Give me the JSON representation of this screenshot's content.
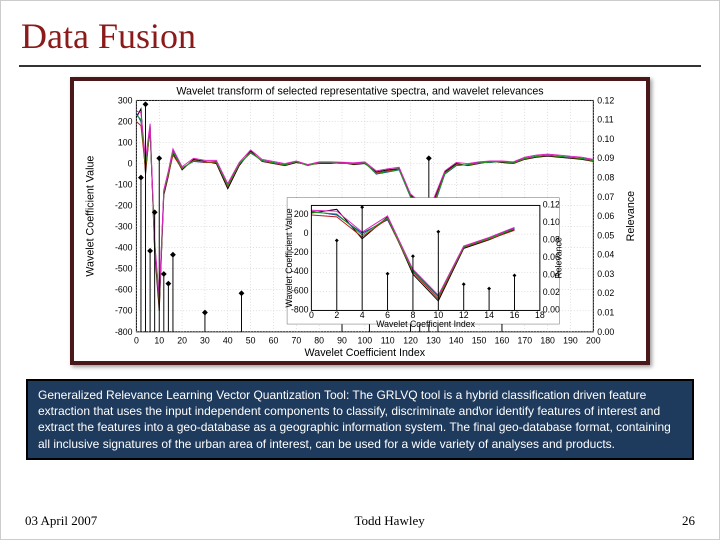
{
  "slide": {
    "title": "Data Fusion",
    "title_color": "#8b1a1a",
    "title_fontsize": 36
  },
  "chart": {
    "type": "line",
    "title": "Wavelet transform of selected representative spectra, and wavelet relevances",
    "xlabel": "Wavelet Coefficient Index",
    "ylabel_left": "Wavelet Coefficient Value",
    "ylabel_right": "Relevance",
    "xlim": [
      0,
      200
    ],
    "xtick_step": 10,
    "ylim_left": [
      -800,
      300
    ],
    "ytick_left_step": 100,
    "ylim_right": [
      0,
      0.12
    ],
    "ytick_right_step": 0.01,
    "background_color": "#ffffff",
    "grid_color": "#bdbdbd",
    "border_color": "#4a1818",
    "series_colors": {
      "A": "#000000",
      "B": "#1030c0",
      "C": "#c01818",
      "D": "#18a018",
      "E": "#e020c0"
    },
    "line_width": 1,
    "series": {
      "x": [
        0,
        2,
        4,
        6,
        8,
        10,
        12,
        14,
        16,
        20,
        25,
        30,
        35,
        40,
        45,
        50,
        55,
        60,
        65,
        70,
        75,
        80,
        85,
        90,
        95,
        100,
        105,
        110,
        115,
        120,
        125,
        130,
        135,
        140,
        145,
        150,
        155,
        160,
        165,
        170,
        175,
        180,
        185,
        190,
        195,
        200
      ],
      "A": [
        220,
        260,
        -50,
        180,
        -420,
        -700,
        -150,
        -60,
        50,
        -30,
        20,
        10,
        0,
        -120,
        -10,
        60,
        10,
        0,
        -10,
        5,
        -5,
        0,
        0,
        5,
        -5,
        0,
        -40,
        -30,
        -25,
        -150,
        -200,
        -180,
        -40,
        0,
        -10,
        0,
        10,
        5,
        0,
        20,
        30,
        35,
        30,
        25,
        20,
        10
      ],
      "B": [
        240,
        200,
        10,
        150,
        -380,
        -650,
        -130,
        -40,
        60,
        -20,
        10,
        5,
        10,
        -100,
        0,
        50,
        15,
        5,
        -5,
        10,
        -10,
        5,
        5,
        0,
        0,
        5,
        -50,
        -40,
        -30,
        -160,
        -230,
        -210,
        -50,
        -10,
        -5,
        5,
        5,
        10,
        5,
        25,
        35,
        40,
        35,
        30,
        25,
        15
      ],
      "C": [
        200,
        180,
        -30,
        160,
        -400,
        -680,
        -140,
        -55,
        40,
        -25,
        15,
        5,
        5,
        -110,
        -5,
        55,
        12,
        2,
        -8,
        8,
        -8,
        2,
        2,
        2,
        -2,
        2,
        -45,
        -35,
        -28,
        -155,
        -215,
        -195,
        -45,
        -5,
        -8,
        2,
        8,
        8,
        2,
        22,
        32,
        38,
        32,
        28,
        22,
        12
      ],
      "D": [
        230,
        210,
        -10,
        170,
        -390,
        -660,
        -135,
        -45,
        55,
        -22,
        12,
        8,
        8,
        -105,
        -2,
        52,
        14,
        4,
        -6,
        9,
        -9,
        4,
        4,
        1,
        -1,
        3,
        -48,
        -38,
        -29,
        -158,
        -225,
        -205,
        -48,
        -8,
        -6,
        3,
        7,
        9,
        3,
        24,
        34,
        39,
        34,
        29,
        24,
        14
      ],
      "E": [
        250,
        240,
        20,
        190,
        -370,
        -640,
        -125,
        -35,
        70,
        -15,
        25,
        15,
        15,
        -95,
        5,
        65,
        20,
        10,
        0,
        12,
        -5,
        8,
        8,
        6,
        3,
        8,
        -35,
        -25,
        -18,
        -145,
        -190,
        -170,
        -35,
        5,
        0,
        8,
        12,
        12,
        8,
        30,
        40,
        45,
        40,
        35,
        30,
        20
      ]
    },
    "relevance_x": [
      2,
      4,
      6,
      8,
      10,
      12,
      14,
      16,
      30,
      46,
      90,
      102,
      120,
      124,
      128,
      132,
      160
    ],
    "relevance_y": [
      0.08,
      0.118,
      0.042,
      0.062,
      0.09,
      0.03,
      0.025,
      0.04,
      0.01,
      0.02,
      0.008,
      0.012,
      0.05,
      0.04,
      0.09,
      0.06,
      0.005
    ],
    "relevance_marker": "diamond",
    "inset": {
      "title": "",
      "xlabel": "Wavelet Coefficient Index",
      "ylabel_left": "Wavelet Coefficient Value",
      "ylabel_right": "Relevance",
      "xlim": [
        0,
        18
      ],
      "ylim_left": [
        -800,
        300
      ],
      "ylim_right": [
        0,
        0.12
      ]
    }
  },
  "caption": "Generalized Relevance Learning Vector Quantization Tool:  The GRLVQ tool is a hybrid classification driven feature extraction that uses the input independent components to classify, discriminate and\\or identify features of interest and extract the features into a geo-database as a geographic information system.  The final geo-database format, containing all inclusive signatures of the urban area of interest, can be used for a wide variety of analyses and products.",
  "caption_style": {
    "background": "#1e3a5c",
    "text_color": "#ffffff",
    "fontsize": 12,
    "font_family": "Arial"
  },
  "footer": {
    "date": "03 April 2007",
    "author": "Todd Hawley",
    "page": "26",
    "fontsize": 13
  }
}
